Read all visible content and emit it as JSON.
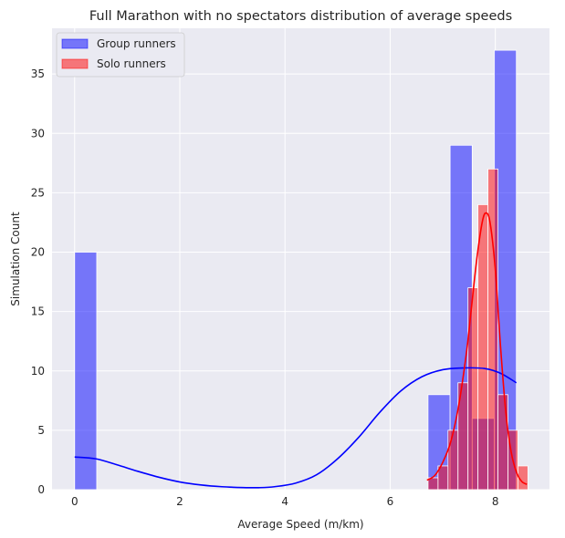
{
  "chart_data": {
    "type": "histogram",
    "title": "Full Marathon with no spectators distribution of average speeds",
    "xlabel": "Average Speed (m/km)",
    "ylabel": "Simulation Count",
    "xlim": [
      -0.43,
      9.03
    ],
    "ylim": [
      0,
      38.85
    ],
    "x_ticks": [
      0,
      2,
      4,
      6,
      8
    ],
    "y_ticks": [
      0,
      5,
      10,
      15,
      20,
      25,
      30,
      35
    ],
    "grid": true,
    "legend_position": "top-left",
    "series": [
      {
        "name": "Group runners",
        "color": "#0000ff",
        "bin_edges": [
          0,
          0.42,
          0.84,
          1.26,
          1.68,
          2.1,
          2.52,
          2.94,
          3.36,
          3.78,
          4.2,
          4.62,
          5.04,
          5.46,
          5.88,
          6.3,
          6.72,
          7.14,
          7.56,
          7.98,
          8.4
        ],
        "counts": [
          20,
          0,
          0,
          0,
          0,
          0,
          0,
          0,
          0,
          0,
          0,
          0,
          0,
          0,
          0,
          0,
          8,
          29,
          6,
          37
        ],
        "kde": [
          [
            0,
            2.75
          ],
          [
            0.4,
            2.6
          ],
          [
            0.8,
            2.1
          ],
          [
            1.2,
            1.55
          ],
          [
            1.6,
            1.05
          ],
          [
            2.0,
            0.65
          ],
          [
            2.4,
            0.4
          ],
          [
            2.8,
            0.25
          ],
          [
            3.2,
            0.18
          ],
          [
            3.5,
            0.17
          ],
          [
            3.8,
            0.25
          ],
          [
            4.2,
            0.55
          ],
          [
            4.6,
            1.25
          ],
          [
            5.0,
            2.6
          ],
          [
            5.4,
            4.4
          ],
          [
            5.8,
            6.5
          ],
          [
            6.2,
            8.3
          ],
          [
            6.6,
            9.5
          ],
          [
            7.0,
            10.1
          ],
          [
            7.4,
            10.25
          ],
          [
            7.8,
            10.2
          ],
          [
            8.1,
            9.8
          ],
          [
            8.4,
            9.0
          ]
        ]
      },
      {
        "name": "Solo runners",
        "color": "#ff0000",
        "bin_edges": [
          6.72,
          6.91,
          7.1,
          7.29,
          7.48,
          7.67,
          7.86,
          8.05,
          8.24,
          8.43,
          8.62
        ],
        "counts": [
          1,
          2,
          5,
          9,
          17,
          24,
          27,
          8,
          5,
          2
        ],
        "kde": [
          [
            6.7,
            0.8
          ],
          [
            6.85,
            1.2
          ],
          [
            7.0,
            2.3
          ],
          [
            7.15,
            4.0
          ],
          [
            7.3,
            7.0
          ],
          [
            7.45,
            11.5
          ],
          [
            7.55,
            15.5
          ],
          [
            7.65,
            19.5
          ],
          [
            7.75,
            22.5
          ],
          [
            7.82,
            23.3
          ],
          [
            7.9,
            22.5
          ],
          [
            8.0,
            18.5
          ],
          [
            8.1,
            12.0
          ],
          [
            8.2,
            6.5
          ],
          [
            8.3,
            3.2
          ],
          [
            8.4,
            1.5
          ],
          [
            8.5,
            0.7
          ],
          [
            8.6,
            0.45
          ]
        ]
      }
    ]
  }
}
